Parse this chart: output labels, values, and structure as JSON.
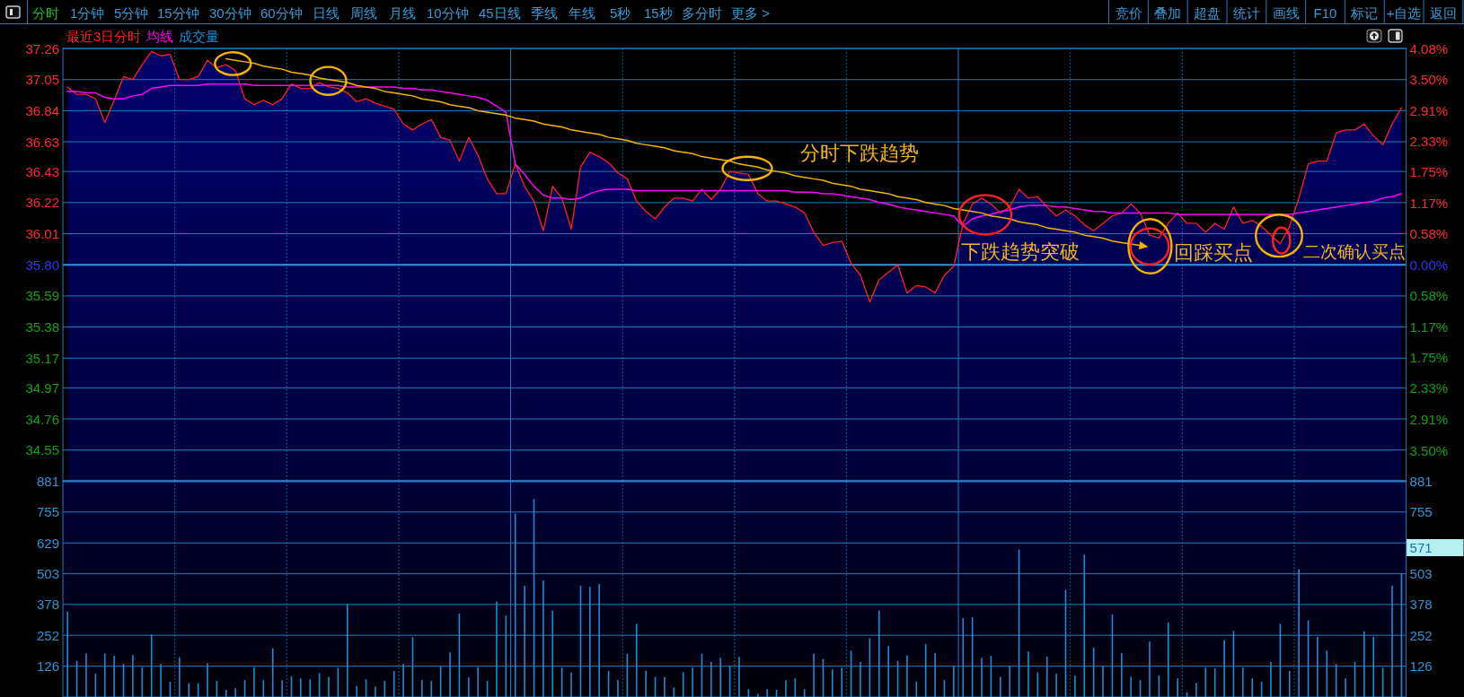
{
  "chart_data": [
    {
      "type": "other",
      "annotations": [
        "分时",
        "1分钟",
        "5分钟",
        "15分钟",
        "30分钟",
        "60分钟",
        "日线",
        "周线",
        "月线",
        "10分钟",
        "45日线",
        "季线",
        "年线",
        "5秒",
        "15秒",
        "多分时",
        "更多 >",
        "竞价",
        "叠加",
        "超盘",
        "统计",
        "画线",
        "F10",
        "标记",
        "+自选",
        "返回"
      ]
    },
    {
      "type": "area",
      "categories": [
        null,
        null,
        null,
        null,
        null,
        null,
        null,
        null,
        null,
        null,
        null,
        null,
        null,
        null,
        null,
        null,
        null,
        null,
        null,
        null,
        null,
        null,
        null,
        null,
        null,
        null,
        null,
        null,
        null,
        null,
        null,
        null,
        null,
        null,
        null,
        null,
        null,
        null,
        null,
        null,
        null,
        null,
        null,
        null,
        null,
        null,
        null,
        null,
        null,
        null,
        null,
        null,
        null,
        null,
        null,
        null,
        null,
        null,
        null,
        null,
        null,
        null,
        null,
        null,
        null,
        null,
        null,
        null,
        null,
        null,
        null,
        null,
        null,
        null,
        null,
        null,
        null,
        null,
        null,
        null,
        null,
        null,
        null,
        null,
        null,
        null,
        null,
        null,
        null,
        null,
        null,
        null,
        null,
        null,
        null,
        null,
        null,
        null,
        null,
        null,
        null,
        null,
        null,
        null,
        null,
        null,
        null,
        null,
        null,
        null,
        null,
        null,
        null,
        null,
        null,
        null,
        null,
        null,
        null,
        null,
        null,
        null,
        null,
        null,
        null,
        null,
        null,
        null,
        null,
        null,
        null,
        null,
        null,
        null,
        null,
        null,
        null,
        null,
        null,
        null,
        null,
        null,
        null,
        null
      ],
      "series": [
        {
          "name": "最近3日分时",
          "type": "area",
          "color": "#ff2020",
          "values": [
            37.0,
            36.95,
            36.95,
            36.92,
            36.76,
            36.91,
            37.07,
            37.05,
            37.15,
            37.24,
            37.21,
            37.22,
            37.05,
            37.05,
            37.07,
            37.18,
            37.13,
            37.15,
            37.11,
            36.92,
            36.88,
            36.91,
            36.88,
            36.92,
            37.02,
            36.99,
            36.99,
            37.03,
            37.0,
            36.99,
            36.96,
            36.9,
            36.92,
            36.89,
            36.87,
            36.85,
            36.75,
            36.71,
            36.75,
            36.78,
            36.66,
            36.64,
            36.5,
            36.66,
            36.54,
            36.38,
            36.28,
            36.28,
            36.48,
            36.33,
            36.23,
            36.03,
            36.33,
            36.25,
            36.04,
            36.46,
            36.56,
            36.53,
            36.49,
            36.42,
            36.38,
            36.23,
            36.16,
            36.11,
            36.19,
            36.25,
            36.25,
            36.23,
            36.31,
            36.24,
            36.31,
            36.43,
            36.42,
            36.41,
            36.28,
            36.23,
            36.23,
            36.21,
            36.19,
            36.15,
            36.02,
            35.93,
            35.95,
            35.96,
            35.81,
            35.73,
            35.55,
            35.7,
            35.75,
            35.8,
            35.61,
            35.66,
            35.65,
            35.61,
            35.73,
            35.79,
            36.08,
            36.21,
            36.25,
            36.21,
            36.15,
            36.19,
            36.31,
            36.25,
            36.26,
            36.19,
            36.13,
            36.17,
            36.13,
            36.07,
            36.03,
            36.08,
            36.13,
            36.15,
            36.21,
            36.15,
            36.0,
            35.98,
            36.08,
            36.15,
            36.08,
            36.08,
            36.02,
            36.08,
            36.04,
            36.19,
            36.08,
            36.1,
            36.06,
            36.0,
            35.94,
            36.06,
            36.25,
            36.48,
            36.5,
            36.5,
            36.69,
            36.71,
            36.71,
            36.75,
            36.67,
            36.61,
            36.75,
            36.86
          ]
        },
        {
          "name": "均线",
          "type": "line",
          "color": "#ff00ff",
          "values": [
            36.97,
            36.97,
            36.96,
            36.96,
            36.93,
            36.92,
            36.92,
            36.94,
            36.95,
            36.99,
            37.0,
            37.01,
            37.01,
            37.01,
            37.01,
            37.02,
            37.02,
            37.02,
            37.02,
            37.02,
            37.01,
            37.01,
            37.01,
            37.01,
            37.01,
            37.01,
            37.01,
            37.01,
            37.01,
            37.01,
            37.0,
            37.0,
            37.0,
            37.0,
            37.0,
            37.0,
            36.99,
            36.99,
            36.98,
            36.98,
            36.97,
            36.96,
            36.95,
            36.94,
            36.93,
            36.91,
            36.87,
            36.83,
            36.48,
            36.41,
            36.33,
            36.27,
            36.25,
            36.25,
            36.24,
            36.25,
            36.28,
            36.3,
            36.31,
            36.31,
            36.31,
            36.3,
            36.3,
            36.3,
            36.3,
            36.3,
            36.3,
            36.3,
            36.3,
            36.3,
            36.3,
            36.3,
            36.3,
            36.3,
            36.3,
            36.3,
            36.3,
            36.3,
            36.29,
            36.29,
            36.29,
            36.28,
            36.28,
            36.27,
            36.26,
            36.25,
            36.24,
            36.22,
            36.21,
            36.19,
            36.18,
            36.17,
            36.16,
            36.15,
            36.14,
            36.13,
            36.06,
            36.11,
            36.13,
            36.14,
            36.16,
            36.17,
            36.19,
            36.2,
            36.2,
            36.2,
            36.19,
            36.19,
            36.18,
            36.17,
            36.16,
            36.16,
            36.15,
            36.15,
            36.15,
            36.15,
            36.15,
            36.15,
            36.15,
            36.14,
            36.14,
            36.14,
            36.14,
            36.14,
            36.14,
            36.14,
            36.14,
            36.14,
            36.14,
            36.14,
            36.14,
            36.14,
            36.15,
            36.16,
            36.17,
            36.18,
            36.19,
            36.2,
            36.21,
            36.22,
            36.23,
            36.25,
            36.26,
            36.28
          ]
        },
        {
          "type": "line",
          "color": "#f5b400",
          "values": [
            null,
            null,
            null,
            null,
            null,
            null,
            null,
            null,
            null,
            null,
            null,
            null,
            null,
            null,
            null,
            null,
            null,
            37.19,
            37.18,
            37.17,
            37.16,
            37.14,
            37.13,
            37.12,
            37.1,
            37.09,
            37.08,
            37.06,
            37.05,
            37.04,
            37.03,
            37.01,
            37.0,
            36.99,
            36.97,
            36.96,
            36.95,
            36.94,
            36.92,
            36.91,
            36.9,
            36.88,
            36.87,
            36.86,
            36.84,
            36.83,
            36.82,
            36.81,
            36.79,
            36.78,
            36.77,
            36.75,
            36.74,
            36.73,
            36.71,
            36.7,
            36.69,
            36.68,
            36.66,
            36.65,
            36.64,
            36.62,
            36.61,
            36.6,
            36.59,
            36.57,
            36.56,
            36.55,
            36.53,
            36.52,
            36.51,
            36.5,
            36.48,
            36.47,
            36.46,
            36.44,
            36.43,
            36.42,
            36.4,
            36.39,
            36.38,
            36.37,
            36.35,
            36.34,
            36.33,
            36.31,
            36.3,
            36.29,
            36.28,
            36.26,
            36.25,
            36.24,
            36.22,
            36.21,
            36.2,
            36.18,
            36.17,
            36.16,
            36.15,
            36.13,
            36.12,
            36.11,
            36.09,
            36.08,
            36.07,
            36.05,
            36.04,
            36.03,
            36.02,
            36.0,
            35.99,
            35.98,
            35.96,
            35.95,
            35.94,
            35.93,
            null,
            null,
            null,
            null,
            null,
            null,
            null,
            null,
            null,
            null,
            null,
            null,
            null,
            null,
            null,
            null,
            null,
            null,
            null,
            null,
            null,
            null,
            null,
            null,
            null,
            null,
            null,
            null
          ]
        }
      ],
      "ylim": [
        34.34,
        37.26
      ],
      "yticks": [
        37.26,
        37.05,
        36.84,
        36.63,
        36.43,
        36.22,
        36.01,
        {
          "value": 35.8,
          "label": "35.80"
        },
        35.59,
        35.38,
        35.17,
        34.97,
        34.76,
        34.55
      ],
      "y2lim": [
        -4.08,
        4.08
      ],
      "y2ticks": [
        {
          "value": 4.08,
          "label": "4.08%"
        },
        {
          "value": 3.5,
          "label": "3.50%"
        },
        {
          "value": 2.91,
          "label": "2.91%"
        },
        {
          "value": 2.33,
          "label": "2.33%"
        },
        {
          "value": 1.75,
          "label": "1.75%"
        },
        {
          "value": 1.17,
          "label": "1.17%"
        },
        {
          "value": 0.58,
          "label": "0.58%"
        },
        {
          "value": 0,
          "label": "0.00%"
        },
        {
          "value": -0.58,
          "label": "0.58%"
        },
        {
          "value": -1.17,
          "label": "1.17%"
        },
        {
          "value": -1.75,
          "label": "1.75%"
        },
        {
          "value": -2.33,
          "label": "2.33%"
        },
        {
          "value": -2.91,
          "label": "2.91%"
        },
        {
          "value": -3.5,
          "label": "3.50%"
        }
      ],
      "ref_lines": [
        {
          "axis": "y",
          "value": 35.8
        }
      ],
      "grid": true,
      "legend": "top left",
      "annotations": [
        "分时下跌趋势",
        "下跌趋势突破",
        "回踩买点",
        "二次确认买点"
      ]
    },
    {
      "type": "bar",
      "categories": [
        null,
        null,
        null,
        null,
        null,
        null,
        null,
        null,
        null,
        null,
        null,
        null,
        null,
        null,
        null,
        null,
        null,
        null,
        null,
        null,
        null,
        null,
        null,
        null,
        null,
        null,
        null,
        null,
        null,
        null,
        null,
        null,
        null,
        null,
        null,
        null,
        null,
        null,
        null,
        null,
        null,
        null,
        null,
        null,
        null,
        null,
        null,
        null,
        null,
        null,
        null,
        null,
        null,
        null,
        null,
        null,
        null,
        null,
        null,
        null,
        null,
        null,
        null,
        null,
        null,
        null,
        null,
        null,
        null,
        null,
        null,
        null,
        null,
        null,
        null,
        null,
        null,
        null,
        null,
        null,
        null,
        null,
        null,
        null,
        null,
        null,
        null,
        null,
        null,
        null,
        null,
        null,
        null,
        null,
        null,
        null,
        null,
        null,
        null,
        null,
        null,
        null,
        null,
        null,
        null,
        null,
        null,
        null,
        null,
        null,
        null,
        null,
        null,
        null,
        null,
        null,
        null,
        null,
        null,
        null,
        null,
        null,
        null,
        null,
        null,
        null,
        null,
        null,
        null,
        null,
        null,
        null,
        null,
        null,
        null,
        null,
        null,
        null,
        null,
        null,
        null,
        null,
        null,
        null
      ],
      "series": [
        {
          "name": "成交量",
          "color": "#1e8cd2",
          "values": [
            348,
            148,
            178,
            95,
            178,
            168,
            135,
            171,
            122,
            255,
            135,
            62,
            162,
            56,
            56,
            138,
            66,
            29,
            36,
            69,
            122,
            69,
            199,
            69,
            85,
            76,
            72,
            98,
            82,
            119,
            378,
            45,
            72,
            42,
            66,
            106,
            135,
            244,
            70,
            65,
            125,
            182,
            340,
            80,
            122,
            66,
            390,
            332,
            748,
            454,
            808,
            476,
            353,
            120,
            100,
            454,
            450,
            461,
            107,
            69,
            177,
            299,
            107,
            82,
            82,
            38,
            101,
            120,
            177,
            143,
            160,
            126,
            164,
            32,
            13,
            32,
            29,
            69,
            76,
            32,
            177,
            155,
            113,
            120,
            189,
            143,
            240,
            353,
            208,
            148,
            170,
            63,
            215,
            180,
            69,
            126,
            322,
            326,
            160,
            168,
            82,
            126,
            602,
            186,
            101,
            164,
            95,
            438,
            88,
            581,
            202,
            126,
            337,
            180,
            82,
            69,
            227,
            88,
            305,
            76,
            19,
            57,
            120,
            117,
            233,
            269,
            120,
            76,
            63,
            143,
            299,
            107,
            521,
            313,
            246,
            189,
            135,
            76,
            143,
            268,
            246,
            120,
            454,
            505
          ]
        }
      ],
      "ylim": [
        0,
        881
      ],
      "yticks": [
        881,
        755,
        629,
        503,
        378,
        252,
        126
      ],
      "y2lim": [
        0,
        881
      ],
      "y2ticks": [
        881,
        755,
        503,
        378,
        252,
        126
      ],
      "grid": true,
      "legend": "top left",
      "annotations": [
        "571"
      ]
    }
  ]
}
